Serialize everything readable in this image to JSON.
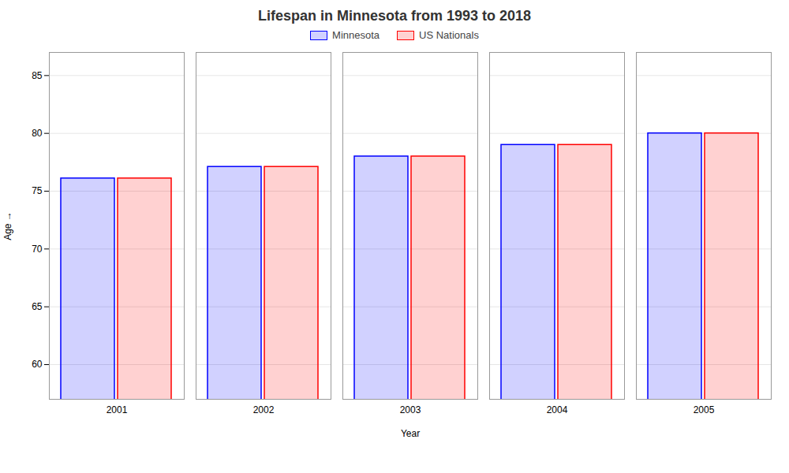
{
  "chart_data": {
    "type": "bar",
    "title": "Lifespan in Minnesota from 1993 to 2018",
    "xlabel": "Year",
    "ylabel": "Age",
    "categories": [
      "2001",
      "2002",
      "2003",
      "2004",
      "2005"
    ],
    "series": [
      {
        "name": "Minnesota",
        "color": "#0000ff",
        "values": [
          76.1,
          77.1,
          78.0,
          79.0,
          80.0
        ]
      },
      {
        "name": "US Nationals",
        "color": "#ff0000",
        "values": [
          76.1,
          77.1,
          78.0,
          79.0,
          80.0
        ]
      }
    ],
    "ylim": [
      57,
      87
    ],
    "yticks": [
      60,
      65,
      70,
      75,
      80,
      85
    ],
    "grid": true,
    "legend": "upper center"
  }
}
